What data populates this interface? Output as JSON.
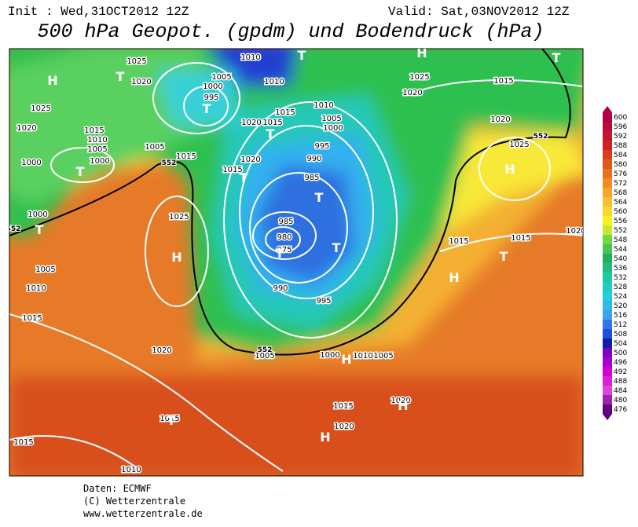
{
  "header": {
    "init": "Init : Wed,31OCT2012 12Z",
    "valid": "Valid: Sat,03NOV2012 12Z",
    "title": "500 hPa Geopot. (gpdm) und Bodendruck (hPa)"
  },
  "map": {
    "pressure_labels": [
      "1025",
      "1020",
      "1025",
      "1020",
      "1015",
      "1010",
      "1005",
      "1000",
      "1005",
      "1015",
      "1015",
      "1020",
      "1020",
      "1015",
      "1015",
      "1010",
      "1010",
      "1005",
      "1000",
      "995",
      "1010",
      "1005",
      "1000",
      "995",
      "990",
      "985",
      "985",
      "980",
      "975",
      "990",
      "995",
      "1000",
      "1005",
      "1010",
      "1005",
      "1025",
      "1020",
      "1015",
      "1020",
      "1025",
      "1015",
      "1015",
      "1020",
      "1000",
      "1005",
      "1010",
      "1015",
      "1025",
      "1020",
      "1015",
      "1015",
      "1010",
      "1015",
      "1020",
      "1020",
      "1000"
    ],
    "height_labels": [
      "552",
      "552",
      "552",
      "552"
    ],
    "centers": [
      "H",
      "T",
      "T",
      "T",
      "H",
      "T",
      "T",
      "T",
      "H",
      "T",
      "T",
      "H",
      "T",
      "H",
      "T",
      "H",
      "H",
      "T",
      "H",
      "T",
      "T"
    ]
  },
  "legend": {
    "labels": [
      "600",
      "596",
      "592",
      "588",
      "584",
      "580",
      "576",
      "572",
      "568",
      "564",
      "560",
      "556",
      "552",
      "548",
      "544",
      "540",
      "536",
      "532",
      "528",
      "524",
      "520",
      "516",
      "512",
      "508",
      "504",
      "500",
      "496",
      "492",
      "488",
      "484",
      "480",
      "476"
    ]
  },
  "footer": {
    "source": "Daten: ECMWF",
    "copyright": "(C) Wetterzentrale",
    "url": "www.wetterzentrale.de"
  }
}
